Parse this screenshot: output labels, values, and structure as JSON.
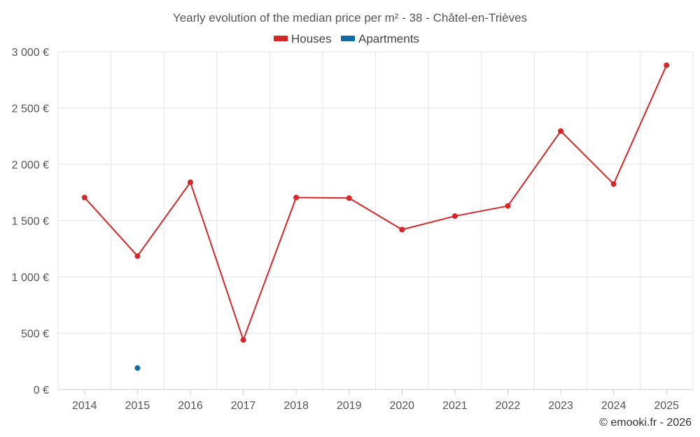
{
  "chart_data": {
    "type": "line",
    "title": "Yearly evolution of the median price per m² - 38 - Châtel-en-Trièves",
    "categories": [
      "2014",
      "2015",
      "2016",
      "2017",
      "2018",
      "2019",
      "2020",
      "2021",
      "2022",
      "2023",
      "2024",
      "2025"
    ],
    "series": [
      {
        "name": "Houses",
        "color": "#d62728",
        "values": [
          1705,
          1185,
          1840,
          440,
          1705,
          1700,
          1420,
          1540,
          1630,
          2295,
          1825,
          2880
        ]
      },
      {
        "name": "Apartments",
        "color": "#0e6ba8",
        "values": [
          null,
          190,
          null,
          null,
          null,
          null,
          null,
          null,
          null,
          null,
          null,
          null
        ]
      }
    ],
    "ylim": [
      0,
      3000
    ],
    "yticks": [
      0,
      500,
      1000,
      1500,
      2000,
      2500,
      3000
    ],
    "ytick_labels": [
      "0 €",
      "500 €",
      "1 000 €",
      "1 500 €",
      "2 000 €",
      "2 500 €",
      "3 000 €"
    ],
    "xlabel": "",
    "ylabel": "",
    "grid": true,
    "legend_position": "top-center"
  },
  "credit": "© emooki.fr - 2026"
}
